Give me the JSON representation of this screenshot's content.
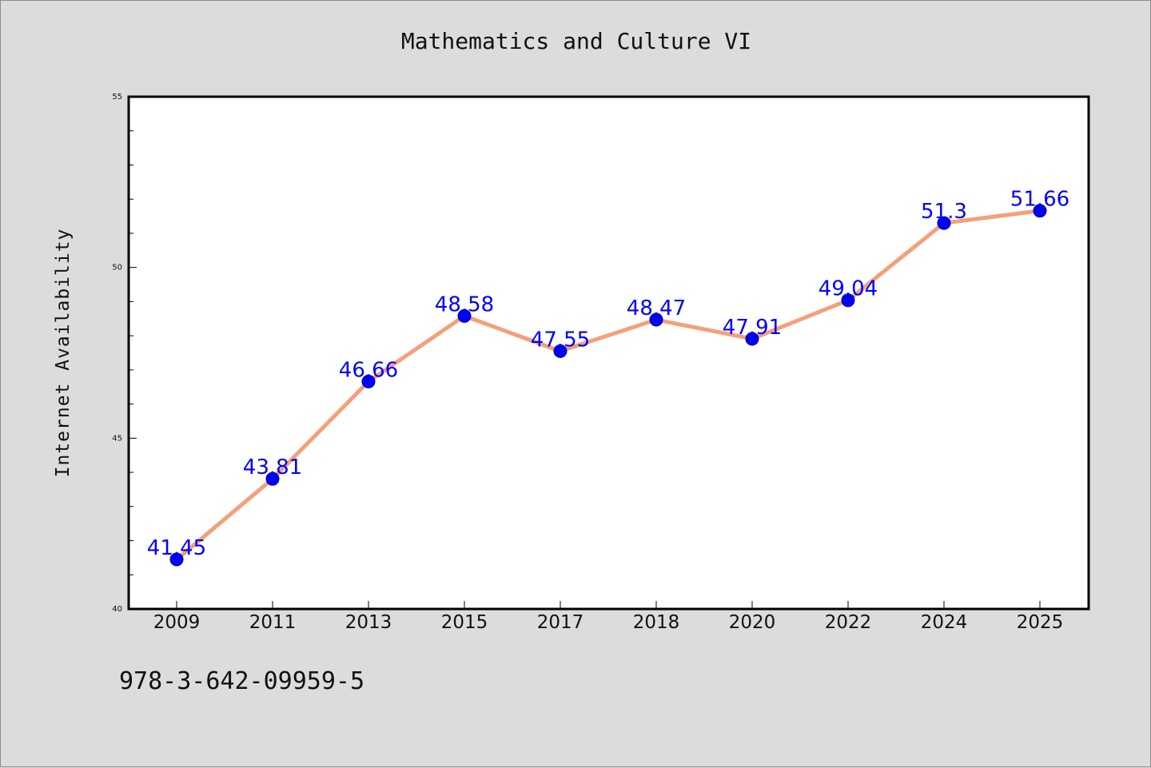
{
  "header": {
    "title": "Mathematics and Culture VI"
  },
  "footer": {
    "code": "978-3-642-09959-5"
  },
  "colors": {
    "background": "#dcdcdc",
    "plot_background": "#ffffff",
    "line": "#f4a07a",
    "marker": "#0000ff",
    "data_label": "#0000ff"
  },
  "chart_data": {
    "type": "line",
    "title": "Mathematics and Culture VI",
    "xlabel": "",
    "ylabel": "Internet Availability",
    "categories": [
      "2009",
      "2011",
      "2013",
      "2015",
      "2017",
      "2018",
      "2020",
      "2022",
      "2024",
      "2025"
    ],
    "series": [
      {
        "values": [
          41.45,
          43.81,
          46.66,
          48.58,
          47.55,
          48.47,
          47.91,
          49.04,
          51.3,
          51.66
        ]
      }
    ],
    "data_labels": [
      "41.45",
      "43.81",
      "46.66",
      "48.58",
      "47.55",
      "48.47",
      "47.91",
      "49.04",
      "51.3",
      "51.66"
    ],
    "ylim": [
      40,
      55
    ],
    "yticks": [
      "40",
      "45",
      "50",
      "55"
    ],
    "grid": false,
    "legend": "none"
  }
}
